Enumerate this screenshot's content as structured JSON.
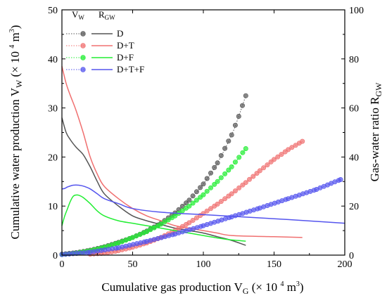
{
  "chart_data": {
    "type": "line",
    "xlabel": "Cumulative gas production V",
    "xlabel_sub": "G",
    "xlabel_unit_pre": " (× 10 ",
    "xlabel_unit_sup": "4",
    "xlabel_unit_post": " m",
    "xlabel_unit_sup2": "3",
    "xlabel_unit_end": ")",
    "ylabel": "Cumulative water production V",
    "ylabel_sub": "W",
    "ylabel_unit_pre": " (× 10 ",
    "ylabel_unit_sup": "4",
    "ylabel_unit_post": " m",
    "ylabel_unit_sup2": "3",
    "ylabel_unit_end": ")",
    "y2label": "Gas-water ratio R",
    "y2label_sub": "GW",
    "xlim": [
      0,
      200
    ],
    "ylim": [
      0,
      50
    ],
    "y2lim": [
      0,
      100
    ],
    "xticks": [
      0,
      50,
      100,
      150,
      200
    ],
    "yticks": [
      0,
      10,
      20,
      30,
      40,
      50
    ],
    "y2ticks": [
      0,
      20,
      40,
      60,
      80,
      100
    ],
    "grid": false,
    "legend": {
      "placement": "top-left",
      "header_vw": "V",
      "header_vw_sub": "W",
      "header_rgw": "R",
      "header_rgw_sub": "GW"
    },
    "series": [
      {
        "name": "D",
        "color": "#555555",
        "vw": [
          [
            0,
            0.2
          ],
          [
            10,
            0.5
          ],
          [
            20,
            1.0
          ],
          [
            30,
            1.7
          ],
          [
            40,
            2.6
          ],
          [
            50,
            3.6
          ],
          [
            60,
            4.9
          ],
          [
            70,
            6.5
          ],
          [
            80,
            8.6
          ],
          [
            90,
            11.2
          ],
          [
            100,
            14.5
          ],
          [
            110,
            18.8
          ],
          [
            120,
            24.5
          ],
          [
            125,
            28.3
          ],
          [
            130,
            32.5
          ]
        ],
        "rgw": [
          [
            0,
            56
          ],
          [
            3,
            50
          ],
          [
            6,
            47
          ],
          [
            10,
            44
          ],
          [
            15,
            41
          ],
          [
            20,
            36
          ],
          [
            25,
            30
          ],
          [
            30,
            25
          ],
          [
            40,
            20
          ],
          [
            50,
            16
          ],
          [
            60,
            14
          ],
          [
            70,
            12.5
          ],
          [
            80,
            11
          ],
          [
            90,
            10
          ],
          [
            100,
            9
          ],
          [
            110,
            7.5
          ],
          [
            120,
            6
          ],
          [
            130,
            4
          ]
        ]
      },
      {
        "name": "D+T",
        "color": "#f07070",
        "vw": [
          [
            20,
            0.2
          ],
          [
            30,
            0.4
          ],
          [
            40,
            0.9
          ],
          [
            50,
            1.6
          ],
          [
            60,
            2.5
          ],
          [
            70,
            3.6
          ],
          [
            80,
            5.0
          ],
          [
            90,
            6.6
          ],
          [
            100,
            8.5
          ],
          [
            110,
            10.4
          ],
          [
            120,
            12.5
          ],
          [
            130,
            14.8
          ],
          [
            140,
            17.2
          ],
          [
            150,
            19.5
          ],
          [
            160,
            21.5
          ],
          [
            170,
            23.2
          ]
        ],
        "rgw": [
          [
            0,
            77
          ],
          [
            3,
            70
          ],
          [
            6,
            65
          ],
          [
            10,
            59
          ],
          [
            15,
            50
          ],
          [
            20,
            40
          ],
          [
            25,
            33
          ],
          [
            30,
            28
          ],
          [
            40,
            23
          ],
          [
            50,
            19
          ],
          [
            60,
            16
          ],
          [
            70,
            14
          ],
          [
            80,
            12
          ],
          [
            90,
            11
          ],
          [
            100,
            10
          ],
          [
            110,
            9
          ],
          [
            120,
            8
          ],
          [
            150,
            7.5
          ],
          [
            170,
            7.2
          ]
        ]
      },
      {
        "name": "D+F",
        "color": "#22ee33",
        "vw": [
          [
            0,
            0.1
          ],
          [
            10,
            0.4
          ],
          [
            20,
            0.9
          ],
          [
            30,
            1.6
          ],
          [
            40,
            2.5
          ],
          [
            50,
            3.6
          ],
          [
            60,
            4.8
          ],
          [
            70,
            6.3
          ],
          [
            80,
            8.0
          ],
          [
            90,
            10.0
          ],
          [
            100,
            12.3
          ],
          [
            110,
            15.0
          ],
          [
            120,
            18.0
          ],
          [
            130,
            21.7
          ]
        ],
        "rgw": [
          [
            0,
            12
          ],
          [
            2,
            16
          ],
          [
            4,
            19
          ],
          [
            6,
            22
          ],
          [
            8,
            24
          ],
          [
            10,
            24.5
          ],
          [
            12,
            24.4
          ],
          [
            15,
            23.5
          ],
          [
            20,
            21
          ],
          [
            25,
            18
          ],
          [
            30,
            16
          ],
          [
            40,
            14
          ],
          [
            50,
            13
          ],
          [
            60,
            12
          ],
          [
            70,
            11
          ],
          [
            80,
            10
          ],
          [
            90,
            9
          ],
          [
            100,
            8
          ],
          [
            110,
            7
          ],
          [
            120,
            6.2
          ],
          [
            130,
            5.7
          ]
        ]
      },
      {
        "name": "D+T+F",
        "color": "#5555ee",
        "vw": [
          [
            0,
            0.1
          ],
          [
            20,
            0.6
          ],
          [
            40,
            1.5
          ],
          [
            60,
            2.8
          ],
          [
            80,
            4.3
          ],
          [
            100,
            6.0
          ],
          [
            120,
            7.8
          ],
          [
            140,
            9.6
          ],
          [
            160,
            11.5
          ],
          [
            180,
            13.4
          ],
          [
            197,
            15.4
          ]
        ],
        "rgw": [
          [
            0,
            27
          ],
          [
            2,
            27.2
          ],
          [
            4,
            27.8
          ],
          [
            8,
            28.5
          ],
          [
            12,
            28.5
          ],
          [
            16,
            28
          ],
          [
            20,
            27
          ],
          [
            25,
            25
          ],
          [
            30,
            23
          ],
          [
            40,
            21
          ],
          [
            50,
            19
          ],
          [
            70,
            17.5
          ],
          [
            100,
            16.5
          ],
          [
            130,
            15.5
          ],
          [
            160,
            14.5
          ],
          [
            200,
            13
          ]
        ]
      }
    ]
  }
}
